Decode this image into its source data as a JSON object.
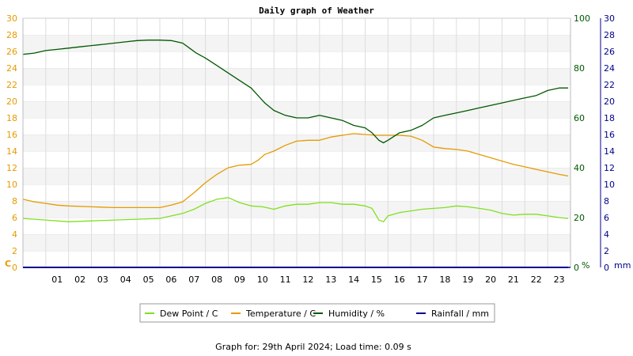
{
  "chart_data": {
    "type": "line",
    "title": "Daily graph of Weather",
    "x_ticks": [
      "01",
      "02",
      "03",
      "04",
      "05",
      "06",
      "07",
      "08",
      "09",
      "10",
      "11",
      "12",
      "13",
      "14",
      "15",
      "16",
      "17",
      "18",
      "19",
      "20",
      "21",
      "22",
      "23"
    ],
    "xlim": [
      0,
      24
    ],
    "axes": {
      "left": {
        "unit": "C",
        "ylim": [
          0,
          30
        ],
        "ticks": [
          0,
          2,
          4,
          6,
          8,
          10,
          12,
          14,
          16,
          18,
          20,
          22,
          24,
          26,
          28,
          30
        ],
        "color": "#e69a00"
      },
      "middle": {
        "unit": "%",
        "ylim": [
          0,
          100
        ],
        "ticks": [
          0,
          20,
          40,
          60,
          80,
          100
        ],
        "color": "#005800"
      },
      "right": {
        "unit": "mm",
        "ylim": [
          0,
          30
        ],
        "ticks": [
          0,
          2,
          4,
          6,
          8,
          10,
          12,
          14,
          16,
          18,
          20,
          22,
          24,
          26,
          28,
          30
        ],
        "color": "#00008c"
      }
    },
    "series": [
      {
        "name": "Dew Point / C",
        "axis": "left",
        "color": "#80e020",
        "x": [
          0,
          1,
          2,
          3,
          4,
          5,
          6,
          7,
          7.5,
          8,
          8.5,
          9,
          9.5,
          10,
          10.5,
          11,
          11.5,
          12,
          12.5,
          13,
          13.5,
          14,
          14.5,
          15,
          15.3,
          15.6,
          15.8,
          16,
          16.5,
          17,
          17.5,
          18,
          18.5,
          19,
          19.5,
          20,
          20.5,
          21,
          21.5,
          22,
          22.5,
          23,
          23.5,
          23.9
        ],
        "y": [
          5.9,
          5.7,
          5.5,
          5.6,
          5.7,
          5.8,
          5.9,
          6.5,
          7.0,
          7.7,
          8.2,
          8.4,
          7.8,
          7.4,
          7.3,
          7.0,
          7.4,
          7.6,
          7.6,
          7.8,
          7.8,
          7.6,
          7.6,
          7.4,
          7.1,
          5.7,
          5.5,
          6.2,
          6.6,
          6.8,
          7.0,
          7.1,
          7.2,
          7.4,
          7.3,
          7.1,
          6.9,
          6.5,
          6.3,
          6.4,
          6.4,
          6.2,
          6.0,
          5.9
        ]
      },
      {
        "name": "Temperature / C",
        "axis": "left",
        "color": "#e69a00",
        "x": [
          0,
          0.5,
          1,
          1.5,
          2,
          3,
          4,
          5,
          6,
          6.5,
          7,
          7.5,
          8,
          8.5,
          9,
          9.5,
          10,
          10.3,
          10.6,
          11,
          11.5,
          12,
          12.5,
          13,
          13.5,
          14,
          14.5,
          15,
          15.5,
          16,
          16.5,
          17,
          17.5,
          18,
          18.5,
          19,
          19.5,
          20,
          20.5,
          21,
          21.5,
          22,
          22.5,
          23,
          23.5,
          23.9
        ],
        "y": [
          8.2,
          7.9,
          7.7,
          7.5,
          7.4,
          7.3,
          7.2,
          7.2,
          7.2,
          7.5,
          7.9,
          9.0,
          10.2,
          11.2,
          12.0,
          12.3,
          12.4,
          12.9,
          13.6,
          14.0,
          14.7,
          15.2,
          15.3,
          15.3,
          15.7,
          15.9,
          16.1,
          16.0,
          15.9,
          15.9,
          15.9,
          15.8,
          15.3,
          14.5,
          14.3,
          14.2,
          14.0,
          13.6,
          13.2,
          12.8,
          12.4,
          12.1,
          11.8,
          11.5,
          11.2,
          11.0
        ]
      },
      {
        "name": "Humidity / %",
        "axis": "middle",
        "color": "#005800",
        "x": [
          0,
          0.5,
          1,
          1.5,
          2,
          2.5,
          3,
          3.5,
          4,
          4.5,
          5,
          5.5,
          6,
          6.5,
          7,
          7.3,
          7.6,
          8,
          8.5,
          9,
          9.5,
          10,
          10.3,
          10.6,
          11,
          11.5,
          12,
          12.5,
          13,
          13.5,
          14,
          14.5,
          15,
          15.3,
          15.6,
          15.8,
          16,
          16.5,
          17,
          17.5,
          18,
          18.5,
          19,
          19.5,
          20,
          20.5,
          21,
          21.5,
          22,
          22.5,
          23,
          23.5,
          23.9
        ],
        "y": [
          85.5,
          86,
          87,
          87.5,
          88,
          88.5,
          89,
          89.5,
          90,
          90.5,
          91,
          91.2,
          91.2,
          91,
          90,
          88,
          86,
          84,
          81,
          78,
          75,
          72,
          69,
          66,
          63,
          61,
          60,
          60,
          61,
          60,
          59,
          57,
          56,
          54,
          51,
          50,
          51,
          54,
          55,
          57,
          60,
          61,
          62,
          63,
          64,
          65,
          66,
          67,
          68,
          69,
          71,
          72,
          72
        ]
      },
      {
        "name": "Rainfall / mm",
        "axis": "right",
        "color": "#00008c",
        "x": [
          0,
          23.9
        ],
        "y": [
          0,
          0
        ]
      }
    ],
    "grid": true,
    "legend_position": "bottom"
  },
  "footer": "Graph for: 29th April 2024; Load time: 0.09 s"
}
